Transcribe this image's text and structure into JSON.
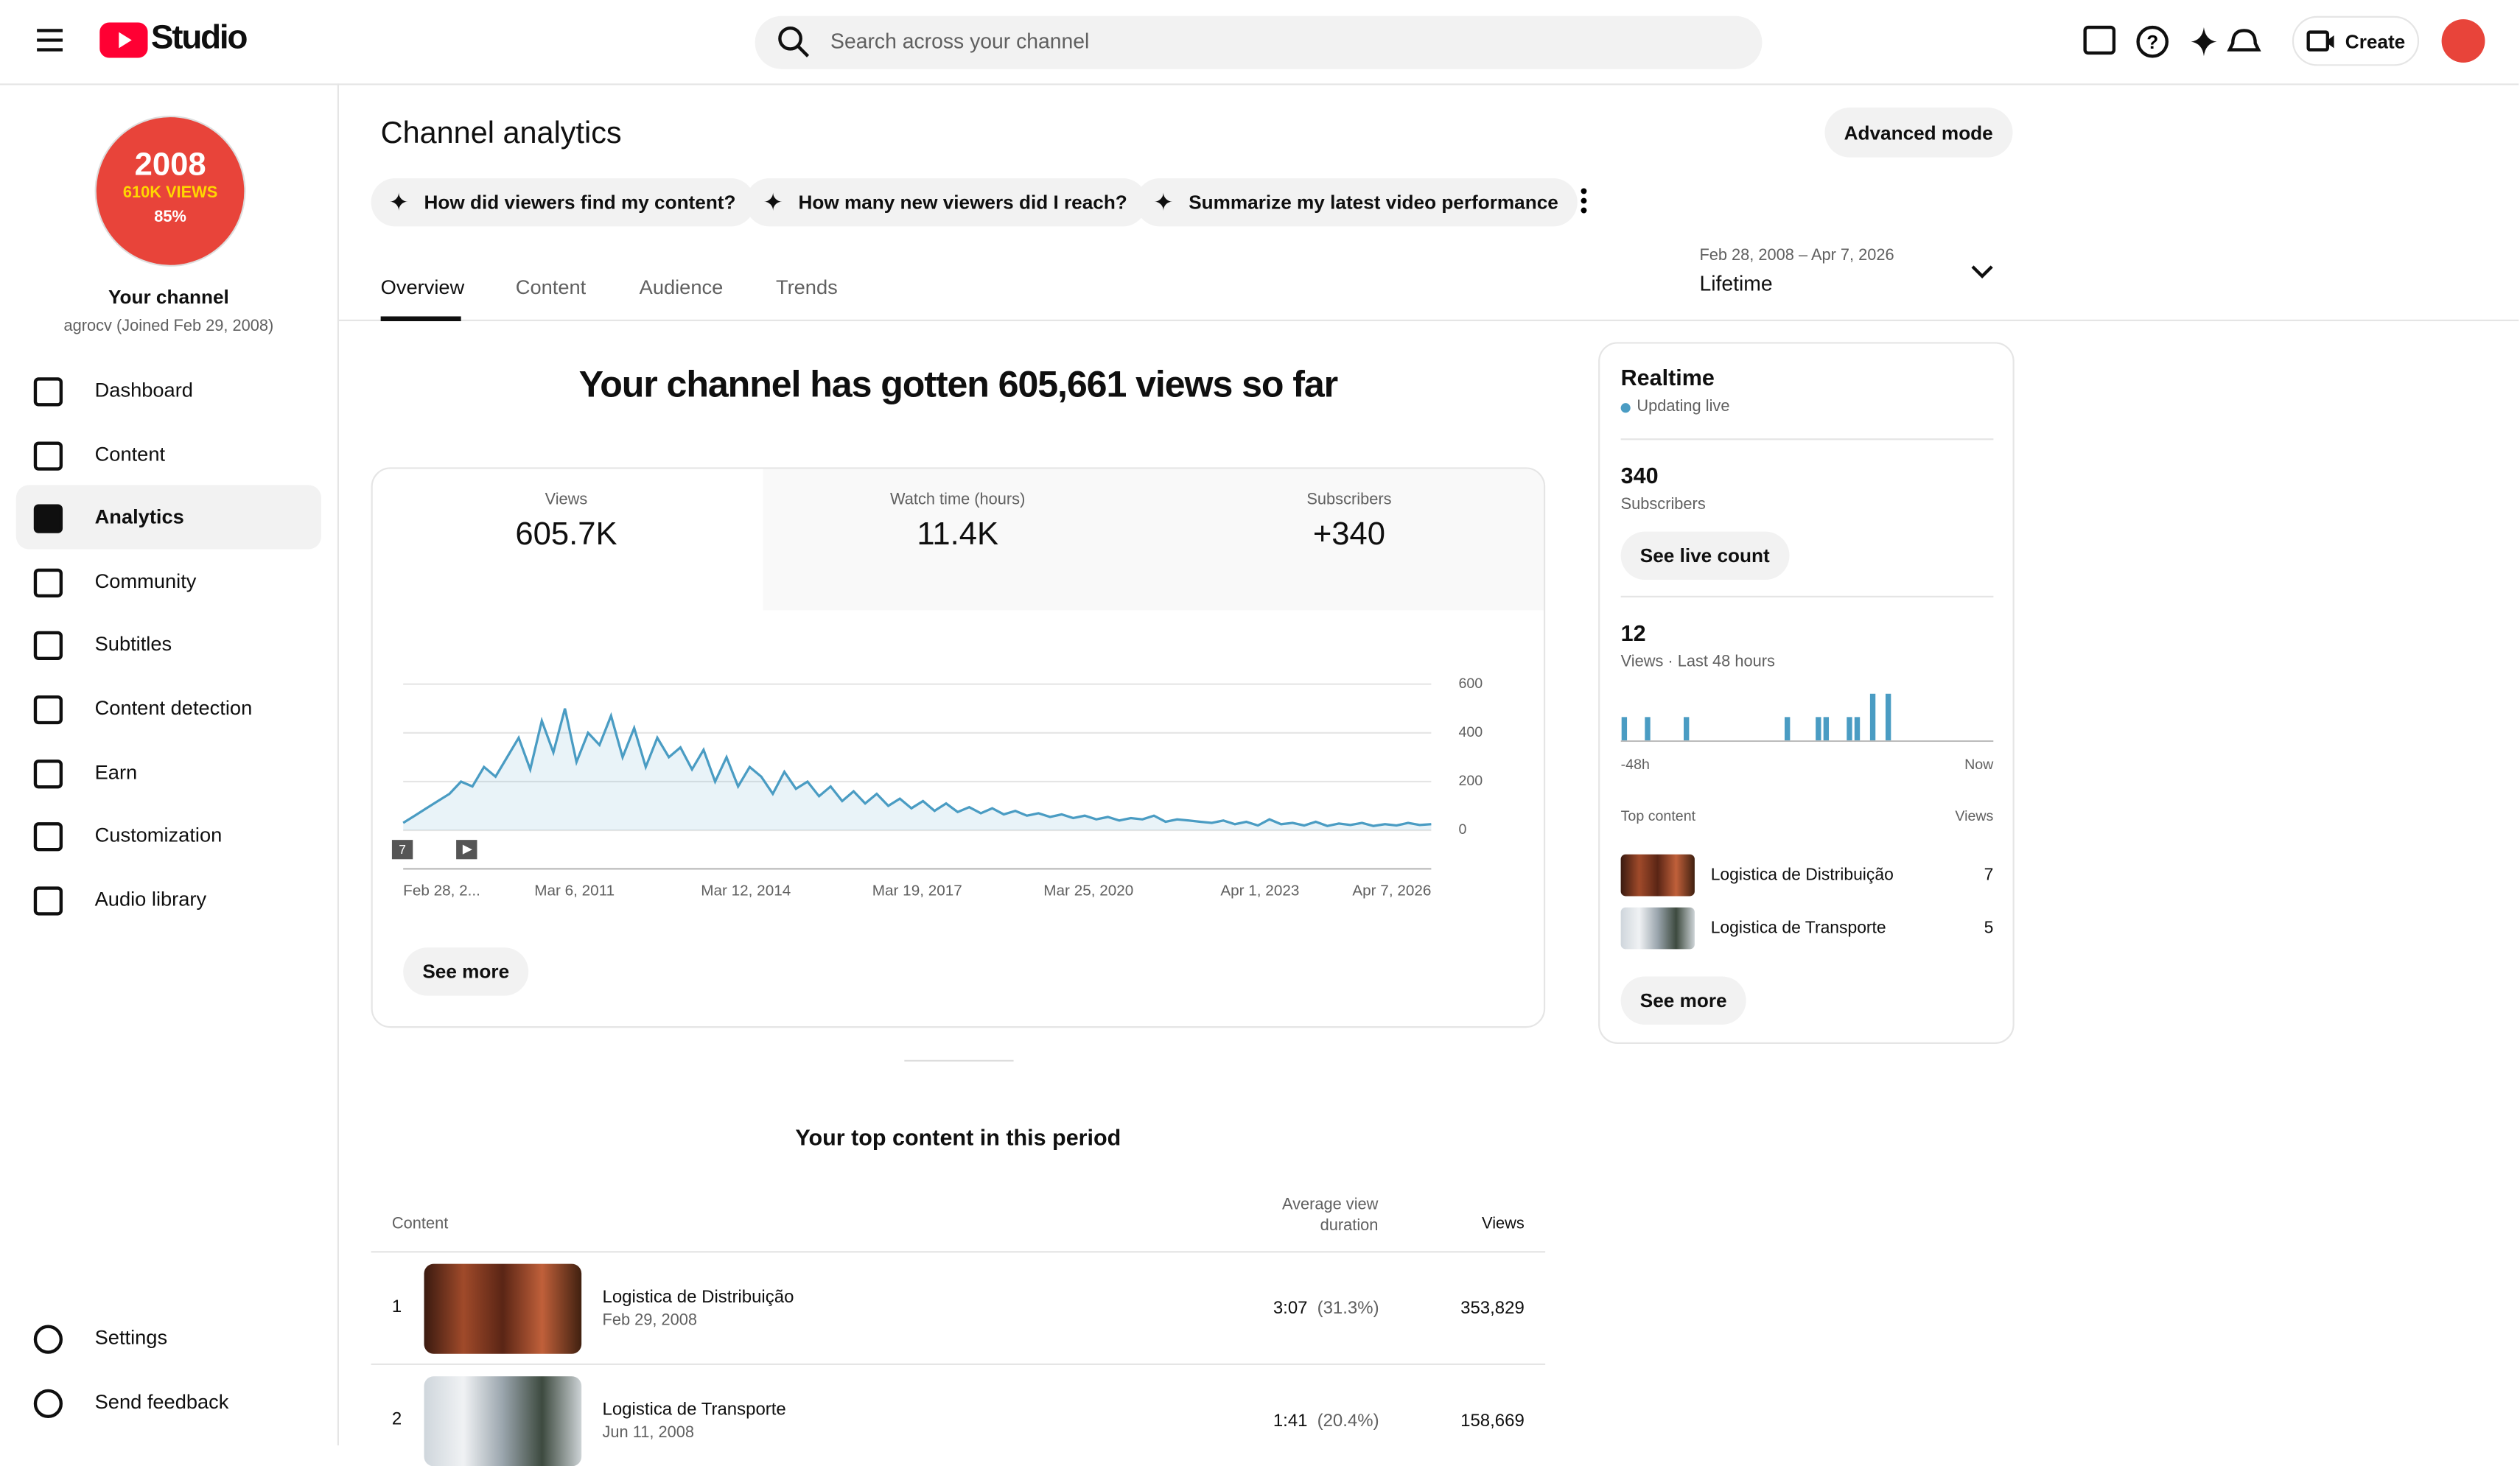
{
  "header": {
    "brand": "Studio",
    "search_placeholder": "Search across your channel",
    "create": "Create"
  },
  "sidebar": {
    "avatar": {
      "year": "2008",
      "views": "610K VIEWS",
      "share": "85%"
    },
    "channel_title": "Your channel",
    "channel_sub": "agrocv (Joined Feb 29, 2008)",
    "nav": [
      "Dashboard",
      "Content",
      "Analytics",
      "Community",
      "Subtitles",
      "Content detection",
      "Earn",
      "Customization",
      "Audio library"
    ],
    "active": 2,
    "footer": [
      "Settings",
      "Send feedback"
    ]
  },
  "page": {
    "title": "Channel analytics",
    "advanced": "Advanced mode",
    "prompts": [
      "How did viewers find my content?",
      "How many new viewers did I reach?",
      "Summarize my latest video performance"
    ],
    "tabs": [
      "Overview",
      "Content",
      "Audience",
      "Trends"
    ],
    "active_tab": 0,
    "date_range": "Feb 28, 2008 – Apr 7, 2026",
    "period": "Lifetime"
  },
  "overview": {
    "headline": "Your channel has gotten 605,661 views so far",
    "metrics": [
      {
        "label": "Views",
        "value": "605.7K"
      },
      {
        "label": "Watch time (hours)",
        "value": "11.4K"
      },
      {
        "label": "Subscribers",
        "value": "+340"
      }
    ],
    "chart": {
      "type": "line",
      "color": "#4a9cc3",
      "values": [
        30,
        60,
        90,
        120,
        150,
        200,
        180,
        260,
        220,
        300,
        380,
        250,
        450,
        320,
        500,
        280,
        400,
        350,
        470,
        300,
        420,
        260,
        380,
        300,
        340,
        250,
        330,
        200,
        300,
        180,
        260,
        220,
        150,
        240,
        170,
        200,
        140,
        180,
        120,
        160,
        110,
        150,
        100,
        130,
        90,
        120,
        80,
        110,
        75,
        95,
        70,
        90,
        65,
        80,
        60,
        70,
        55,
        65,
        50,
        60,
        45,
        55,
        40,
        50,
        45,
        60,
        35,
        45,
        40,
        35,
        30,
        40,
        25,
        35,
        20,
        45,
        25,
        30,
        20,
        35,
        18,
        28,
        22,
        30,
        18,
        25,
        20,
        30,
        22,
        25
      ],
      "ylim": [
        0,
        600
      ],
      "yticks": [
        0,
        200,
        400,
        600
      ],
      "xtick_labels": [
        "Feb 28, 2...",
        "Mar 6, 2011",
        "Mar 12, 2014",
        "Mar 19, 2017",
        "Mar 25, 2020",
        "Apr 1, 2023",
        "Apr 7, 2026"
      ],
      "badge": "7"
    },
    "see_more": "See more"
  },
  "top_content": {
    "title": "Your top content in this period",
    "columns": [
      "Content",
      "Average view duration",
      "Views"
    ],
    "rows": [
      {
        "rank": "1",
        "title": "Logistica de Distribuição",
        "date": "Feb 29, 2008",
        "duration": "3:07",
        "percent": "(31.3%)",
        "views": "353,829"
      },
      {
        "rank": "2",
        "title": "Logistica de Transporte",
        "date": "Jun 11, 2008",
        "duration": "1:41",
        "percent": "(20.4%)",
        "views": "158,669"
      }
    ]
  },
  "realtime": {
    "title": "Realtime",
    "status": "Updating live",
    "subscribers": "340",
    "subscribers_label": "Subscribers",
    "live_button": "See live count",
    "views": "12",
    "views_label": "Views · Last 48 hours",
    "hourly": [
      1,
      0,
      0,
      1,
      0,
      0,
      0,
      0,
      1,
      0,
      0,
      0,
      0,
      0,
      0,
      0,
      0,
      0,
      0,
      0,
      0,
      1,
      0,
      0,
      0,
      1,
      1,
      0,
      0,
      1,
      1,
      0,
      2,
      0,
      2,
      0,
      0,
      0,
      0,
      0,
      0,
      0,
      0,
      0,
      0,
      0,
      0,
      0
    ],
    "start_label": "-48h",
    "end_label": "Now",
    "top_label": "Top content",
    "views_col": "Views",
    "items": [
      {
        "title": "Logistica de Distribuição",
        "views": 7
      },
      {
        "title": "Logistica de Transporte",
        "views": 5
      }
    ],
    "see_more": "See more"
  }
}
